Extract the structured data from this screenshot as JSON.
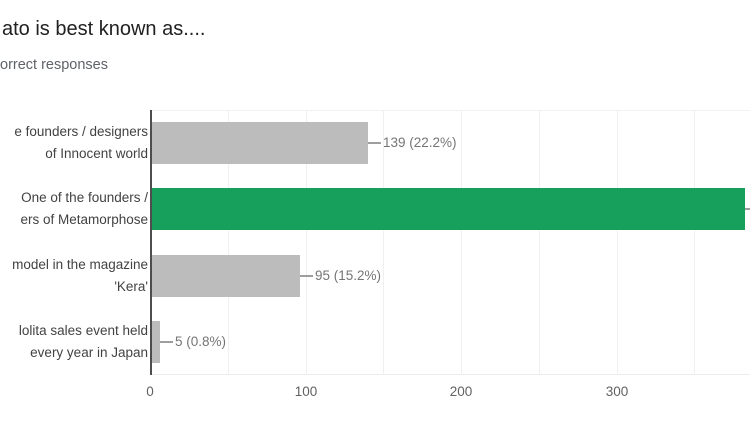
{
  "header": {
    "title_fragment": "ato is best known as....",
    "subtitle_fragment": "orrect responses"
  },
  "chart_data": {
    "type": "bar",
    "orientation": "horizontal",
    "title": "ato is best known as....",
    "subtitle": "orrect responses",
    "xlabel": "",
    "ylabel": "",
    "categories": [
      [
        "e founders / designers",
        "of Innocent world"
      ],
      [
        "One of the founders /",
        "ers of Metamorphose"
      ],
      [
        "model in the magazine",
        "'Kera'"
      ],
      [
        "lolita sales event held",
        "every year in Japan"
      ]
    ],
    "values": [
      139,
      386,
      95,
      5
    ],
    "value_labels": [
      "139 (22.2%)",
      "",
      "95 (15.2%)",
      "5 (0.8%)"
    ],
    "highlight_index": 1,
    "x_ticks": [
      0,
      100,
      200,
      300
    ],
    "grid_minor_step": 50,
    "xlim": [
      0,
      386
    ],
    "grid": "on",
    "legend": "none"
  },
  "colors": {
    "background": "#ffffff",
    "title_text": "#212121",
    "subtitle_text": "#5f6368",
    "category_text": "#424242",
    "value_text": "#757575",
    "tick_text": "#616161",
    "bar_gray": "#bcbcbc",
    "bar_green": "#16a05c",
    "axis_line": "#4d4d4d",
    "gridline": "#f0f0f0",
    "connector": "#9e9e9e"
  }
}
